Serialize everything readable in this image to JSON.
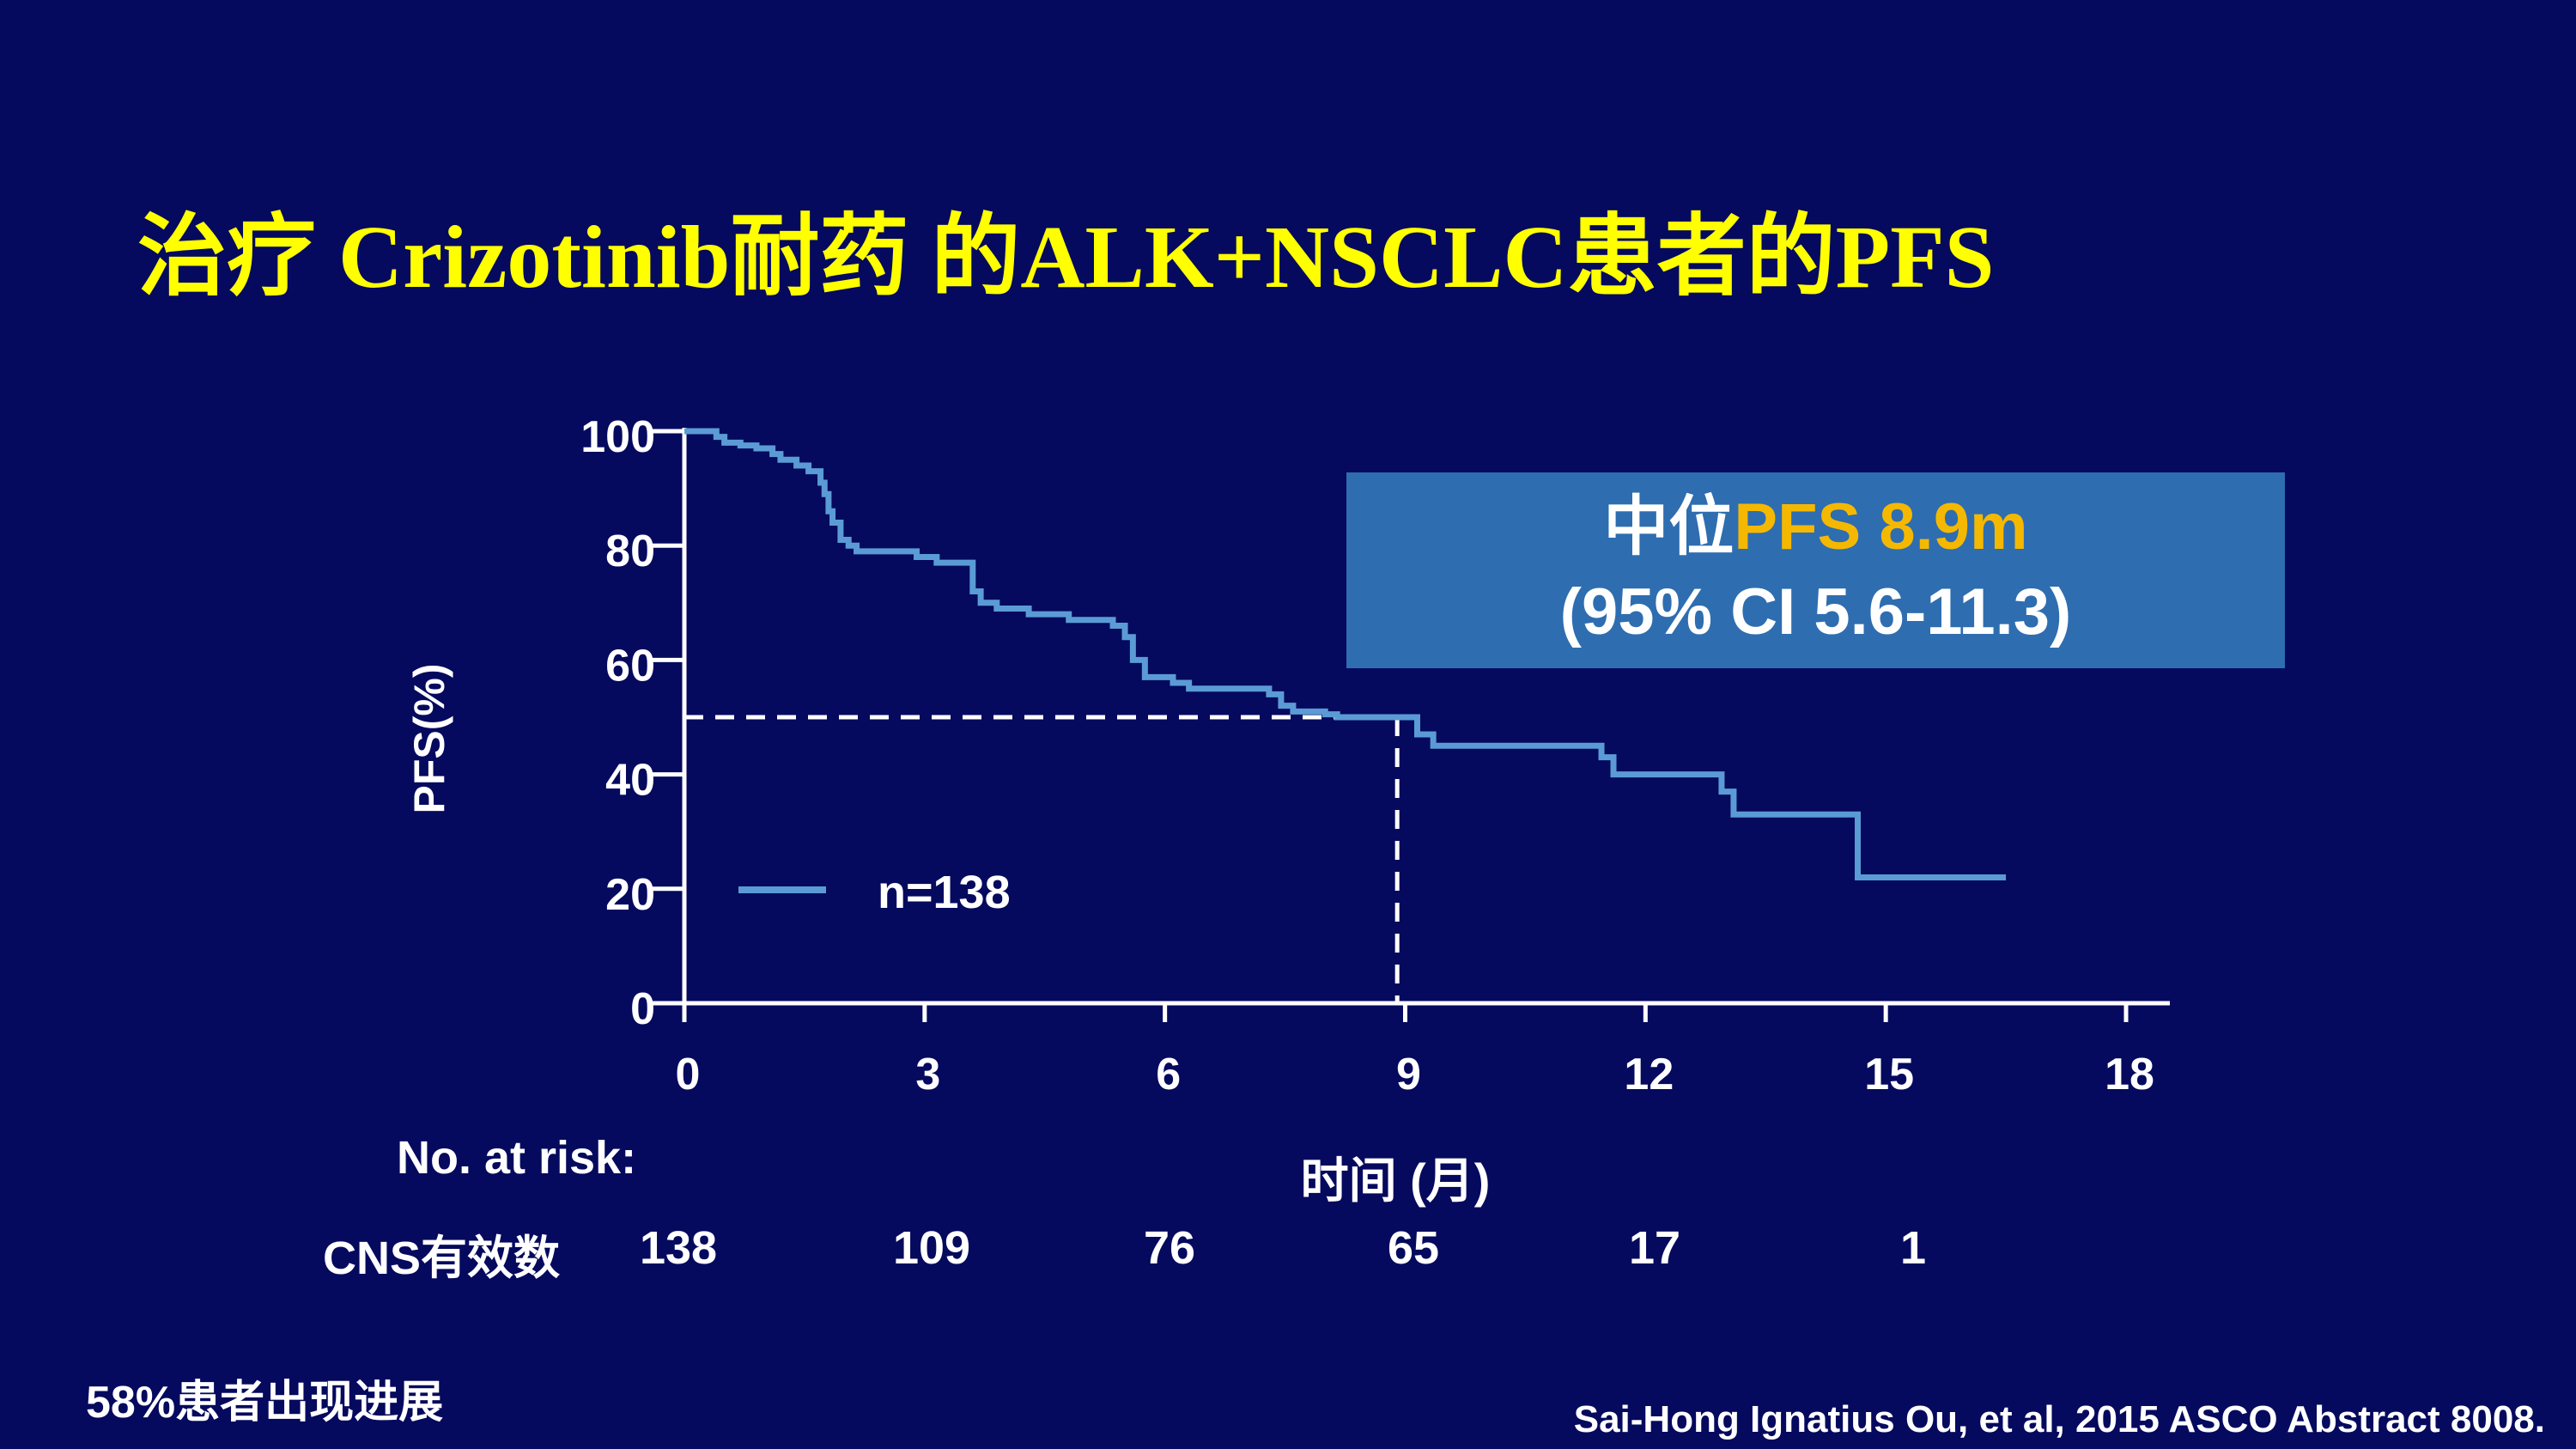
{
  "title": "治疗 Crizotinib耐药 的ALK+NSCLC患者的PFS",
  "median_box": {
    "prefix": "中位",
    "highlight": "PFS 8.9m",
    "ci": "(95% CI 5.6-11.3)"
  },
  "colors": {
    "background": "#050a5e",
    "title": "#ffff00",
    "curve": "#5b9bd5",
    "box": "#2e6db0",
    "box_highlight": "#f5b800"
  },
  "chart_data": {
    "type": "line",
    "title": "",
    "xlabel": "时间 (月)",
    "ylabel": "PFS(%)",
    "xlim": [
      0,
      18
    ],
    "ylim": [
      0,
      100
    ],
    "x_ticks": [
      0,
      3,
      6,
      9,
      12,
      15,
      18
    ],
    "y_ticks": [
      0,
      20,
      40,
      60,
      80,
      100
    ],
    "grid": false,
    "legend_position": "bottom-left",
    "series": [
      {
        "name": "n=138",
        "step": true,
        "x": [
          0,
          0.4,
          0.5,
          0.7,
          0.9,
          1.1,
          1.2,
          1.4,
          1.55,
          1.7,
          1.75,
          1.8,
          1.85,
          1.95,
          2.05,
          2.15,
          2.9,
          3.15,
          3.6,
          3.7,
          3.9,
          4.3,
          4.8,
          5.35,
          5.5,
          5.6,
          5.75,
          6.1,
          6.3,
          7.3,
          7.45,
          7.6,
          8.0,
          8.15,
          9.0,
          9.15,
          9.35,
          11.3,
          11.45,
          11.6,
          12.8,
          12.95,
          13.1,
          14.65,
          16.5
        ],
        "y": [
          100,
          99,
          98,
          97.5,
          97,
          96,
          95,
          94,
          93,
          91,
          89,
          86,
          84,
          81,
          80,
          79,
          78,
          77,
          72,
          70,
          69,
          68,
          67,
          66,
          64,
          60,
          57,
          56,
          55,
          54,
          52,
          51,
          50.5,
          50,
          50,
          47,
          45,
          45,
          43,
          40,
          40,
          37,
          33,
          22,
          22
        ]
      }
    ],
    "median": {
      "x": 8.9,
      "y": 50
    }
  },
  "risk_table": {
    "title": "No. at risk:",
    "row_label": "CNS有效数",
    "times": [
      0,
      3,
      6,
      9,
      12,
      15
    ],
    "values": [
      "138",
      "109",
      "76",
      "65",
      "17",
      "1"
    ]
  },
  "footnote": "58%患者出现进展",
  "citation": "Sai-Hong Ignatius Ou, et al, 2015 ASCO Abstract  8008."
}
